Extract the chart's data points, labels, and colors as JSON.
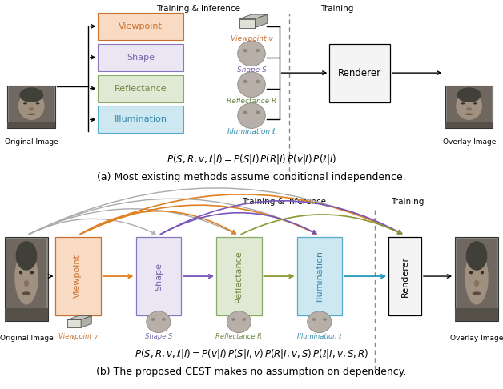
{
  "fig_width": 6.28,
  "fig_height": 4.86,
  "dpi": 100,
  "bg_color": "#ffffff",
  "top": {
    "boxes": [
      {
        "label": "Viewpoint",
        "fc": "#f9dbc4",
        "ec": "#c87030",
        "tc": "#c87030"
      },
      {
        "label": "Shape",
        "fc": "#eae6f4",
        "ec": "#8877bb",
        "tc": "#7766aa"
      },
      {
        "label": "Reflectance",
        "fc": "#dfe9d4",
        "ec": "#88aa66",
        "tc": "#6e8844"
      },
      {
        "label": "Illumination",
        "fc": "#cde8f0",
        "ec": "#55aacc",
        "tc": "#3388aa"
      }
    ],
    "icon_labels": [
      "Viewpoint v",
      "Shape S",
      "Reflectance R",
      "Illumination ℓ"
    ],
    "icon_colors": [
      "#c87030",
      "#7766aa",
      "#6e8844",
      "#3388aa"
    ],
    "formula": "$P(S,R,v,\\ell|I) = P(S|I)\\,P(R|I)\\,P(v|I)\\,P(\\ell|I)$",
    "caption": "(a) Most existing methods assume conditional independence."
  },
  "bot": {
    "boxes": [
      {
        "label": "Viewpoint",
        "fc": "#f9dbc4",
        "ec": "#c87030",
        "tc": "#c87030"
      },
      {
        "label": "Shape",
        "fc": "#eae6f4",
        "ec": "#8877bb",
        "tc": "#7766aa"
      },
      {
        "label": "Reflectance",
        "fc": "#dfe9d4",
        "ec": "#88aa66",
        "tc": "#6e8844"
      },
      {
        "label": "Illumination",
        "fc": "#cde8f0",
        "ec": "#55aacc",
        "tc": "#3388aa"
      }
    ],
    "icon_labels": [
      "Viewpoint v",
      "Shape S",
      "Reflectance R",
      "Illumination ℓ"
    ],
    "icon_colors": [
      "#c87030",
      "#7766aa",
      "#6e8844",
      "#3388aa"
    ],
    "formula": "$P(S,R,v,\\ell|I) = P(v|I)\\,P(S|I,v)\\,P(R|I,v,S)\\,P(\\ell|I,v,S,R)$",
    "caption": "(b) The proposed CEST makes no assumption on dependency.",
    "ac": {
      "orange": "#e08020",
      "purple": "#7755bb",
      "olive": "#889933",
      "teal": "#2299bb",
      "gray": "#aaaaaa"
    }
  }
}
